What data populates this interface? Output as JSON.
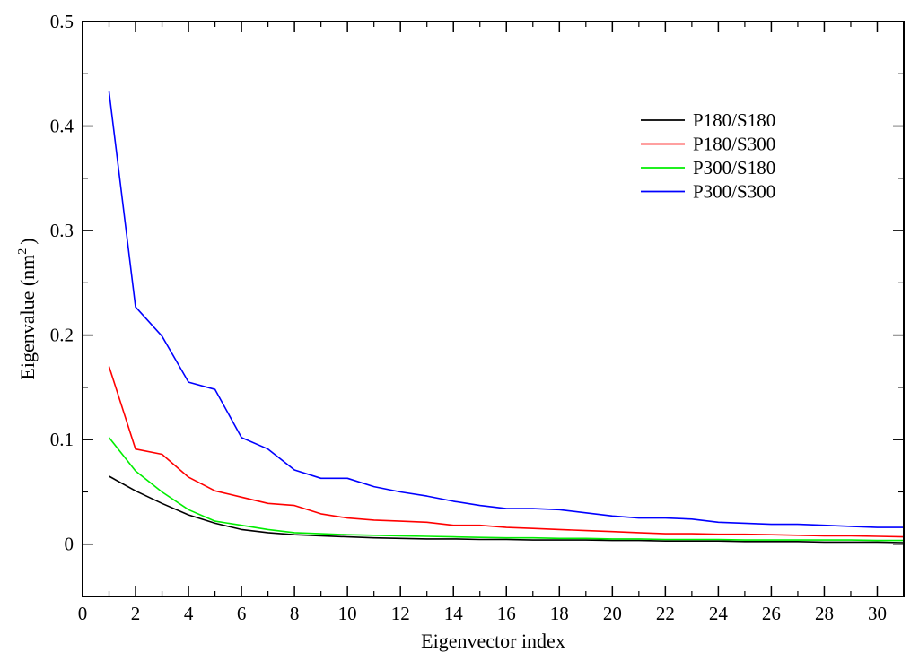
{
  "chart_data": {
    "type": "line",
    "xlabel": "Eigenvector index",
    "ylabel": "Eigenvalue (nm",
    "ylabel_sup": "2",
    "ylabel_tail": ")",
    "xlim": [
      0,
      31
    ],
    "ylim": [
      -0.05,
      0.5
    ],
    "x_ticks": [
      0,
      2,
      4,
      6,
      8,
      10,
      12,
      14,
      16,
      18,
      20,
      22,
      24,
      26,
      28,
      30
    ],
    "x_tick_labels": [
      "0",
      "2",
      "4",
      "6",
      "8",
      "10",
      "12",
      "14",
      "16",
      "18",
      "20",
      "22",
      "24",
      "26",
      "28",
      "30"
    ],
    "y_ticks": [
      0,
      0.1,
      0.2,
      0.3,
      0.4,
      0.5
    ],
    "y_tick_labels": [
      "0",
      "0.1",
      "0.2",
      "0.3",
      "0.4",
      "0.5"
    ],
    "grid": false,
    "legend_position": "top-right",
    "x": [
      1,
      2,
      3,
      4,
      5,
      6,
      7,
      8,
      9,
      10,
      11,
      12,
      13,
      14,
      15,
      16,
      17,
      18,
      19,
      20,
      21,
      22,
      23,
      24,
      25,
      26,
      27,
      28,
      29,
      30,
      31
    ],
    "series": [
      {
        "name": "P180/S180",
        "color": "#000000",
        "values": [
          0.065,
          0.051,
          0.039,
          0.028,
          0.02,
          0.014,
          0.011,
          0.009,
          0.008,
          0.007,
          0.006,
          0.0055,
          0.005,
          0.005,
          0.0045,
          0.0045,
          0.004,
          0.004,
          0.004,
          0.0035,
          0.0035,
          0.003,
          0.003,
          0.003,
          0.0025,
          0.0025,
          0.0025,
          0.002,
          0.002,
          0.002,
          0.0015
        ]
      },
      {
        "name": "P180/S300",
        "color": "#ff0000",
        "values": [
          0.17,
          0.091,
          0.086,
          0.064,
          0.051,
          0.045,
          0.039,
          0.037,
          0.029,
          0.025,
          0.023,
          0.022,
          0.021,
          0.018,
          0.018,
          0.016,
          0.015,
          0.014,
          0.013,
          0.012,
          0.011,
          0.01,
          0.01,
          0.0095,
          0.0095,
          0.009,
          0.0085,
          0.008,
          0.008,
          0.0075,
          0.007
        ]
      },
      {
        "name": "P300/S180",
        "color": "#00ee00",
        "values": [
          0.102,
          0.07,
          0.05,
          0.033,
          0.022,
          0.018,
          0.014,
          0.011,
          0.01,
          0.009,
          0.0085,
          0.008,
          0.0075,
          0.007,
          0.0065,
          0.006,
          0.006,
          0.0055,
          0.0055,
          0.005,
          0.005,
          0.0045,
          0.0045,
          0.0045,
          0.004,
          0.004,
          0.004,
          0.004,
          0.004,
          0.0035,
          0.0035
        ]
      },
      {
        "name": "P300/S300",
        "color": "#0000ff",
        "values": [
          0.433,
          0.227,
          0.199,
          0.155,
          0.148,
          0.102,
          0.091,
          0.071,
          0.063,
          0.063,
          0.055,
          0.05,
          0.046,
          0.041,
          0.037,
          0.034,
          0.034,
          0.033,
          0.03,
          0.027,
          0.025,
          0.025,
          0.024,
          0.021,
          0.02,
          0.019,
          0.019,
          0.018,
          0.017,
          0.016,
          0.016
        ]
      }
    ]
  }
}
